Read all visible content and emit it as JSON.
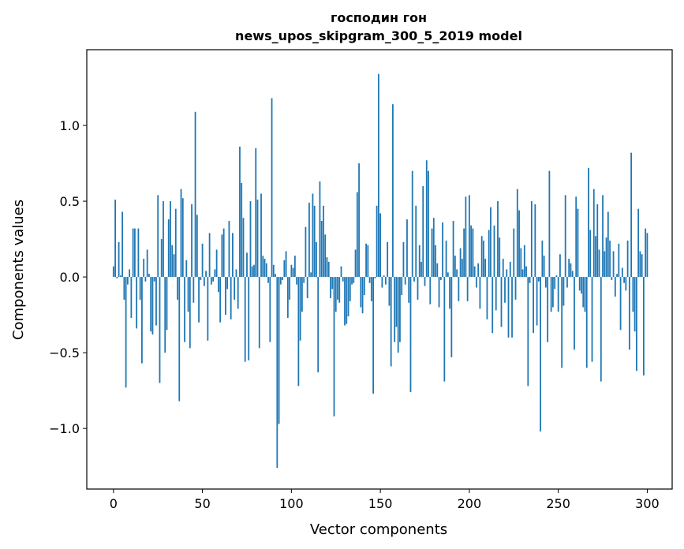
{
  "chart_data": {
    "type": "bar",
    "title": "господин гон",
    "subtitle": "news_upos_skipgram_300_5_2019 model",
    "xlabel": "Vector components",
    "ylabel": "Components values",
    "xlim": [
      -15,
      314
    ],
    "ylim": [
      -1.4,
      1.5
    ],
    "xticks": [
      0,
      50,
      100,
      150,
      200,
      250,
      300
    ],
    "yticks": [
      -1.0,
      -0.5,
      0.0,
      0.5,
      1.0
    ],
    "xtick_labels": [
      "0",
      "50",
      "100",
      "150",
      "200",
      "250",
      "300"
    ],
    "ytick_labels": [
      "−1.0",
      "−0.5",
      "0.0",
      "0.5",
      "1.0"
    ],
    "grid": false,
    "bar_color": "#1f77b4",
    "series": [
      {
        "x_start": 0,
        "values": [
          0.07,
          0.51,
          -0.01,
          0.23,
          0.01,
          0.43,
          -0.15,
          -0.73,
          -0.05,
          0.05,
          -0.27,
          0.32,
          0.32,
          -0.34,
          0.32,
          -0.15,
          -0.57,
          0.12,
          -0.03,
          0.18,
          0.02,
          -0.36,
          -0.38,
          -0.03,
          -0.32,
          0.54,
          -0.7,
          0.25,
          0.5,
          -0.5,
          -0.35,
          0.38,
          0.5,
          0.21,
          0.15,
          0.45,
          -0.15,
          -0.82,
          0.58,
          0.52,
          -0.43,
          0.11,
          -0.23,
          -0.47,
          0.48,
          -0.17,
          1.09,
          0.41,
          -0.3,
          -0.02,
          0.22,
          -0.06,
          0.04,
          -0.42,
          0.29,
          -0.05,
          -0.03,
          0.05,
          0.18,
          -0.1,
          -0.3,
          0.28,
          0.32,
          -0.25,
          -0.08,
          0.37,
          -0.28,
          0.29,
          -0.15,
          0.05,
          -0.21,
          0.86,
          0.62,
          0.39,
          -0.56,
          0.16,
          -0.55,
          0.5,
          0.07,
          0.08,
          0.85,
          0.51,
          -0.47,
          0.55,
          0.14,
          0.12,
          0.09,
          -0.04,
          -0.43,
          1.18,
          0.08,
          0.02,
          -1.26,
          -0.97,
          -0.05,
          -0.02,
          0.11,
          0.17,
          -0.27,
          -0.15,
          0.08,
          0.06,
          0.14,
          -0.05,
          -0.72,
          -0.42,
          -0.23,
          -0.04,
          0.33,
          -0.14,
          0.49,
          0.03,
          0.55,
          0.47,
          0.23,
          -0.63,
          0.63,
          0.37,
          0.47,
          0.28,
          0.13,
          0.1,
          -0.14,
          -0.08,
          -0.92,
          -0.23,
          -0.15,
          -0.17,
          0.07,
          -0.03,
          -0.32,
          -0.31,
          -0.26,
          -0.16,
          -0.05,
          -0.04,
          0.18,
          0.56,
          0.75,
          -0.2,
          -0.24,
          -0.12,
          0.22,
          0.21,
          -0.04,
          -0.16,
          -0.77,
          -0.01,
          0.47,
          1.34,
          0.42,
          -0.07,
          0.01,
          -0.05,
          0.23,
          -0.19,
          -0.59,
          1.14,
          -0.43,
          -0.33,
          -0.5,
          -0.43,
          -0.12,
          0.23,
          -0.05,
          0.38,
          -0.17,
          -0.76,
          0.7,
          -0.03,
          0.47,
          -0.15,
          0.21,
          0.1,
          0.6,
          -0.06,
          0.77,
          0.7,
          -0.18,
          0.32,
          0.39,
          0.21,
          0.09,
          -0.2,
          -0.02,
          0.36,
          -0.69,
          0.24,
          0.03,
          -0.21,
          -0.53,
          0.37,
          0.14,
          0.05,
          -0.16,
          0.19,
          0.12,
          0.32,
          0.53,
          -0.16,
          0.54,
          0.34,
          0.32,
          0.07,
          -0.07,
          0.09,
          -0.21,
          0.27,
          0.24,
          0.12,
          -0.28,
          0.31,
          0.46,
          -0.37,
          0.34,
          -0.22,
          0.5,
          0.26,
          -0.33,
          0.12,
          -0.17,
          0.05,
          -0.4,
          0.1,
          -0.4,
          0.32,
          -0.15,
          0.58,
          0.44,
          0.19,
          0.05,
          0.21,
          0.07,
          -0.72,
          -0.04,
          0.5,
          -0.37,
          0.48,
          -0.32,
          -0.03,
          -1.02,
          0.24,
          0.14,
          -0.07,
          -0.43,
          0.7,
          -0.23,
          -0.2,
          -0.08,
          0.01,
          -0.23,
          0.15,
          -0.6,
          -0.19,
          0.54,
          -0.07,
          0.12,
          0.09,
          0.04,
          -0.48,
          0.53,
          0.45,
          -0.09,
          -0.11,
          -0.2,
          -0.23,
          -0.6,
          0.72,
          0.31,
          -0.56,
          0.58,
          0.27,
          0.48,
          0.18,
          -0.69,
          0.54,
          0.17,
          0.26,
          0.43,
          0.24,
          -0.02,
          0.17,
          -0.13,
          0.02,
          0.22,
          -0.35,
          0.06,
          -0.04,
          -0.09,
          0.24,
          -0.48,
          0.82,
          -0.23,
          -0.36,
          -0.62,
          0.45,
          0.17,
          0.15,
          -0.65,
          0.32,
          0.29
        ]
      }
    ]
  }
}
